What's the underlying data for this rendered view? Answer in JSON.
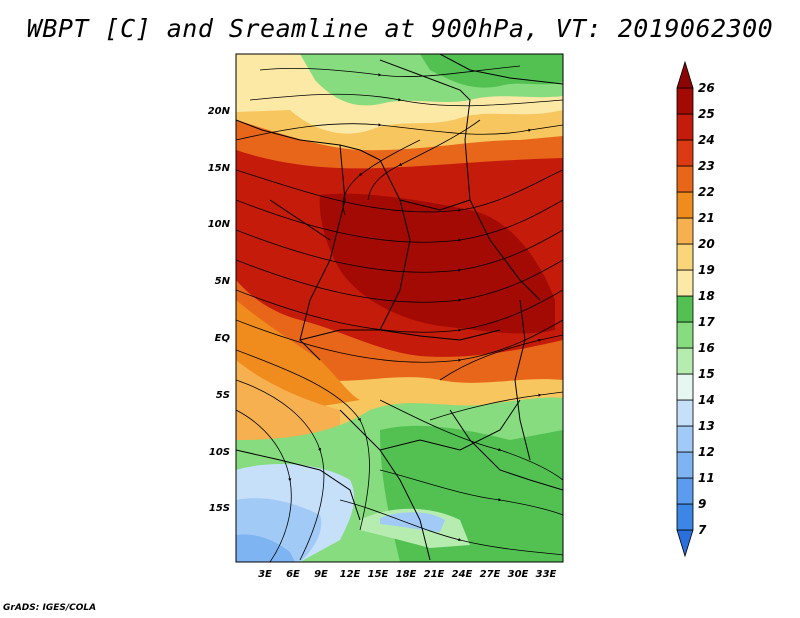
{
  "title": "WBPT [C] and Sreamline at 900hPa, VT: 2019062300",
  "footer": "GrADS: IGES/COLA",
  "map": {
    "lat_labels": [
      "20N",
      "15N",
      "10N",
      "5N",
      "EQ",
      "5S",
      "10S",
      "15S"
    ],
    "lon_labels": [
      "3E",
      "6E",
      "9E",
      "12E",
      "15E",
      "18E",
      "21E",
      "24E",
      "27E",
      "30E",
      "33E"
    ]
  },
  "colorbar": {
    "levels": [
      "7",
      "9",
      "11",
      "12",
      "13",
      "14",
      "15",
      "16",
      "17",
      "18",
      "19",
      "20",
      "21",
      "22",
      "23",
      "24",
      "25",
      "26"
    ],
    "colors": [
      "#2a6fdb",
      "#3c86e6",
      "#5b9cee",
      "#7fb4f2",
      "#a2caf6",
      "#c6e0fa",
      "#e6f6f1",
      "#b7ecb0",
      "#86dc7e",
      "#52c152",
      "#fde9a6",
      "#fbd57a",
      "#f6b04f",
      "#f08c1d",
      "#e8661a",
      "#dc3a12",
      "#c51b0a",
      "#a40a04",
      "#8a0503"
    ]
  },
  "legend_levels_order": "bottom-to-top"
}
